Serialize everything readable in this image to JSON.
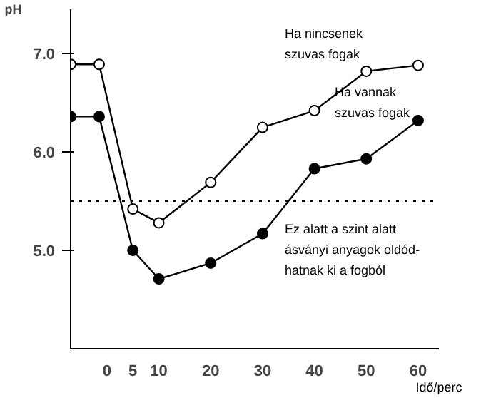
{
  "chart_data": {
    "type": "line",
    "ylabel": "pH",
    "xlabel": "Idő/perc",
    "xlim": [
      -7,
      64
    ],
    "ylim": [
      4.0,
      7.45
    ],
    "xticks": [
      0,
      5,
      10,
      20,
      30,
      40,
      50,
      60
    ],
    "yticks": [
      {
        "value": 7.0,
        "label": "7.0"
      },
      {
        "value": 6.0,
        "label": "6.0"
      },
      {
        "value": 5.0,
        "label": "5.0"
      }
    ],
    "grid": false,
    "marker": "circle",
    "line_style": "solid",
    "series": [
      {
        "color": "#000000",
        "x": [
          -7,
          -1.5,
          5,
          10,
          20,
          30,
          40,
          50,
          60
        ],
        "values": [
          6.89,
          6.89,
          5.42,
          5.28,
          5.69,
          6.25,
          6.42,
          6.82,
          6.88
        ]
      },
      {
        "color": "#000000",
        "x": [
          -7,
          -1.5,
          5,
          10,
          20,
          30,
          40,
          50,
          60
        ],
        "values": [
          6.36,
          6.36,
          5.0,
          4.71,
          4.87,
          5.17,
          5.83,
          5.93,
          6.32
        ]
      }
    ],
    "ref_lines": [
      {
        "axis": "y",
        "value": 5.5,
        "line_style": "dotted",
        "color": "#000000"
      }
    ],
    "annotations": [
      "Ha nincsenek\nszuvas fogak",
      "Ha vannak\nszuvas fogak",
      "Ez alatt a szint alatt\násványi anyagok oldód-\nhatnak ki a fogból"
    ]
  }
}
